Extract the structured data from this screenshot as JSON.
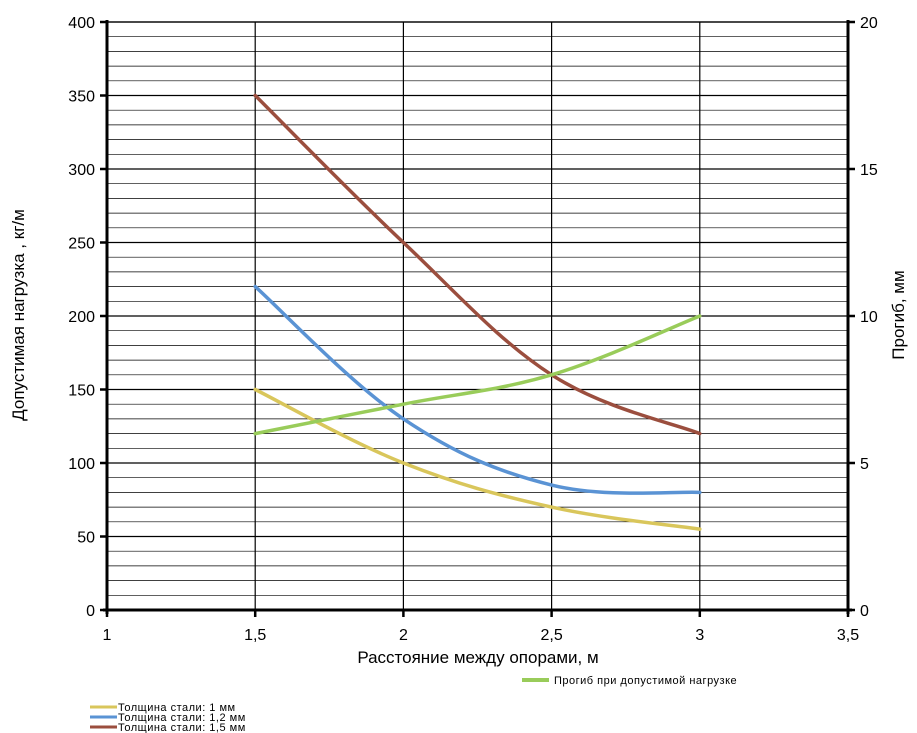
{
  "chart_data": {
    "type": "line",
    "xlabel": "Расстояние между опорами, м",
    "ylabel": "Допустимая нагрузка , кг/м",
    "y2label": "Прогиб, мм",
    "xlim": [
      1,
      3.5
    ],
    "ylim": [
      0,
      400
    ],
    "y2lim": [
      0,
      20
    ],
    "x_ticks": [
      {
        "value": 1,
        "label": "1"
      },
      {
        "value": 1.5,
        "label": "1,5"
      },
      {
        "value": 2,
        "label": "2"
      },
      {
        "value": 2.5,
        "label": "2,5"
      },
      {
        "value": 3,
        "label": "3"
      },
      {
        "value": 3.5,
        "label": "3,5"
      }
    ],
    "y_ticks": [
      {
        "value": 0,
        "label": "0"
      },
      {
        "value": 50,
        "label": "50"
      },
      {
        "value": 100,
        "label": "100"
      },
      {
        "value": 150,
        "label": "150"
      },
      {
        "value": 200,
        "label": "200"
      },
      {
        "value": 250,
        "label": "250"
      },
      {
        "value": 300,
        "label": "300"
      },
      {
        "value": 350,
        "label": "350"
      },
      {
        "value": 400,
        "label": "400"
      }
    ],
    "y2_ticks": [
      {
        "value": 0,
        "label": "0"
      },
      {
        "value": 5,
        "label": "5"
      },
      {
        "value": 10,
        "label": "10"
      },
      {
        "value": 15,
        "label": "15"
      },
      {
        "value": 20,
        "label": "20"
      }
    ],
    "minor_grid_step": 10,
    "grid": true,
    "series": [
      {
        "name": "Толщина стали: 1 мм",
        "axis": "left",
        "color": "#d9c65b",
        "x": [
          1.5,
          2,
          2.5,
          3
        ],
        "y": [
          150,
          100,
          70,
          55
        ]
      },
      {
        "name": "Толщина стали: 1,2 мм",
        "axis": "left",
        "color": "#5a93d4",
        "x": [
          1.5,
          2,
          2.5,
          3
        ],
        "y": [
          220,
          130,
          85,
          80
        ]
      },
      {
        "name": "Толщина стали: 1,5 мм",
        "axis": "left",
        "color": "#9b4e3e",
        "x": [
          1.5,
          2,
          2.5,
          3
        ],
        "y": [
          350,
          250,
          160,
          120
        ]
      },
      {
        "name": "Прогиб при допустимой нагрузке",
        "axis": "right",
        "color": "#99cc5a",
        "x": [
          1.5,
          2,
          2.5,
          3
        ],
        "y": [
          6,
          7,
          8,
          10
        ]
      }
    ]
  }
}
